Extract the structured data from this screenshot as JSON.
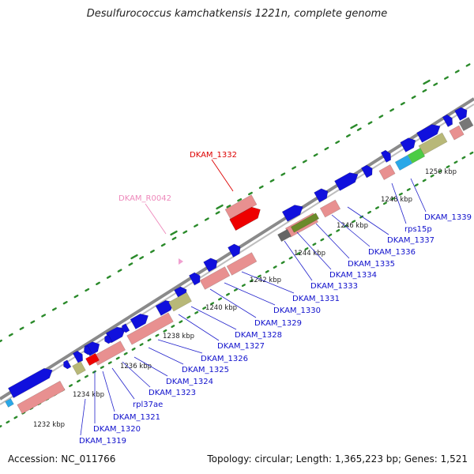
{
  "title": "Desulfurococcus kamchatkensis 1221n, complete genome",
  "footer": {
    "accession": "Accession: NC_011766",
    "stats": "Topology: circular; Length: 1,365,223 bp; Genes: 1,521"
  },
  "colors": {
    "backbone": "#8a8a8a",
    "gene_forward": "#1010dd",
    "cds_reverse": "#e89090",
    "rna": "#b8b878",
    "highlight": "#ee0000",
    "label_gene": "#1010cc",
    "label_highlight": "#dd0000",
    "label_rna": "#ee88bb",
    "tick": "#2a8a2a"
  },
  "scale_labels": [
    "1232 kbp",
    "1234 kbp",
    "1236 kbp",
    "1238 kbp",
    "1240 kbp",
    "1242 kbp",
    "1244 kbp",
    "1246 kbp",
    "1248 kbp",
    "1250 kbp"
  ],
  "gene_labels": [
    {
      "text": "DKAM_1319",
      "kind": "gene"
    },
    {
      "text": "DKAM_1320",
      "kind": "gene"
    },
    {
      "text": "DKAM_1321",
      "kind": "gene"
    },
    {
      "text": "rpl37ae",
      "kind": "gene"
    },
    {
      "text": "DKAM_1323",
      "kind": "gene"
    },
    {
      "text": "DKAM_1324",
      "kind": "gene"
    },
    {
      "text": "DKAM_1325",
      "kind": "gene"
    },
    {
      "text": "DKAM_1326",
      "kind": "gene"
    },
    {
      "text": "DKAM_1327",
      "kind": "gene"
    },
    {
      "text": "DKAM_1328",
      "kind": "gene"
    },
    {
      "text": "DKAM_1329",
      "kind": "gene"
    },
    {
      "text": "DKAM_1330",
      "kind": "gene"
    },
    {
      "text": "DKAM_1331",
      "kind": "gene"
    },
    {
      "text": "DKAM_1333",
      "kind": "gene"
    },
    {
      "text": "DKAM_1334",
      "kind": "gene"
    },
    {
      "text": "DKAM_1335",
      "kind": "gene"
    },
    {
      "text": "DKAM_1336",
      "kind": "gene"
    },
    {
      "text": "DKAM_1337",
      "kind": "gene"
    },
    {
      "text": "rps15p",
      "kind": "gene"
    },
    {
      "text": "DKAM_1339",
      "kind": "gene"
    },
    {
      "text": "DKAM_1332",
      "kind": "highlight"
    },
    {
      "text": "DKAM_R0042",
      "kind": "rna"
    }
  ]
}
